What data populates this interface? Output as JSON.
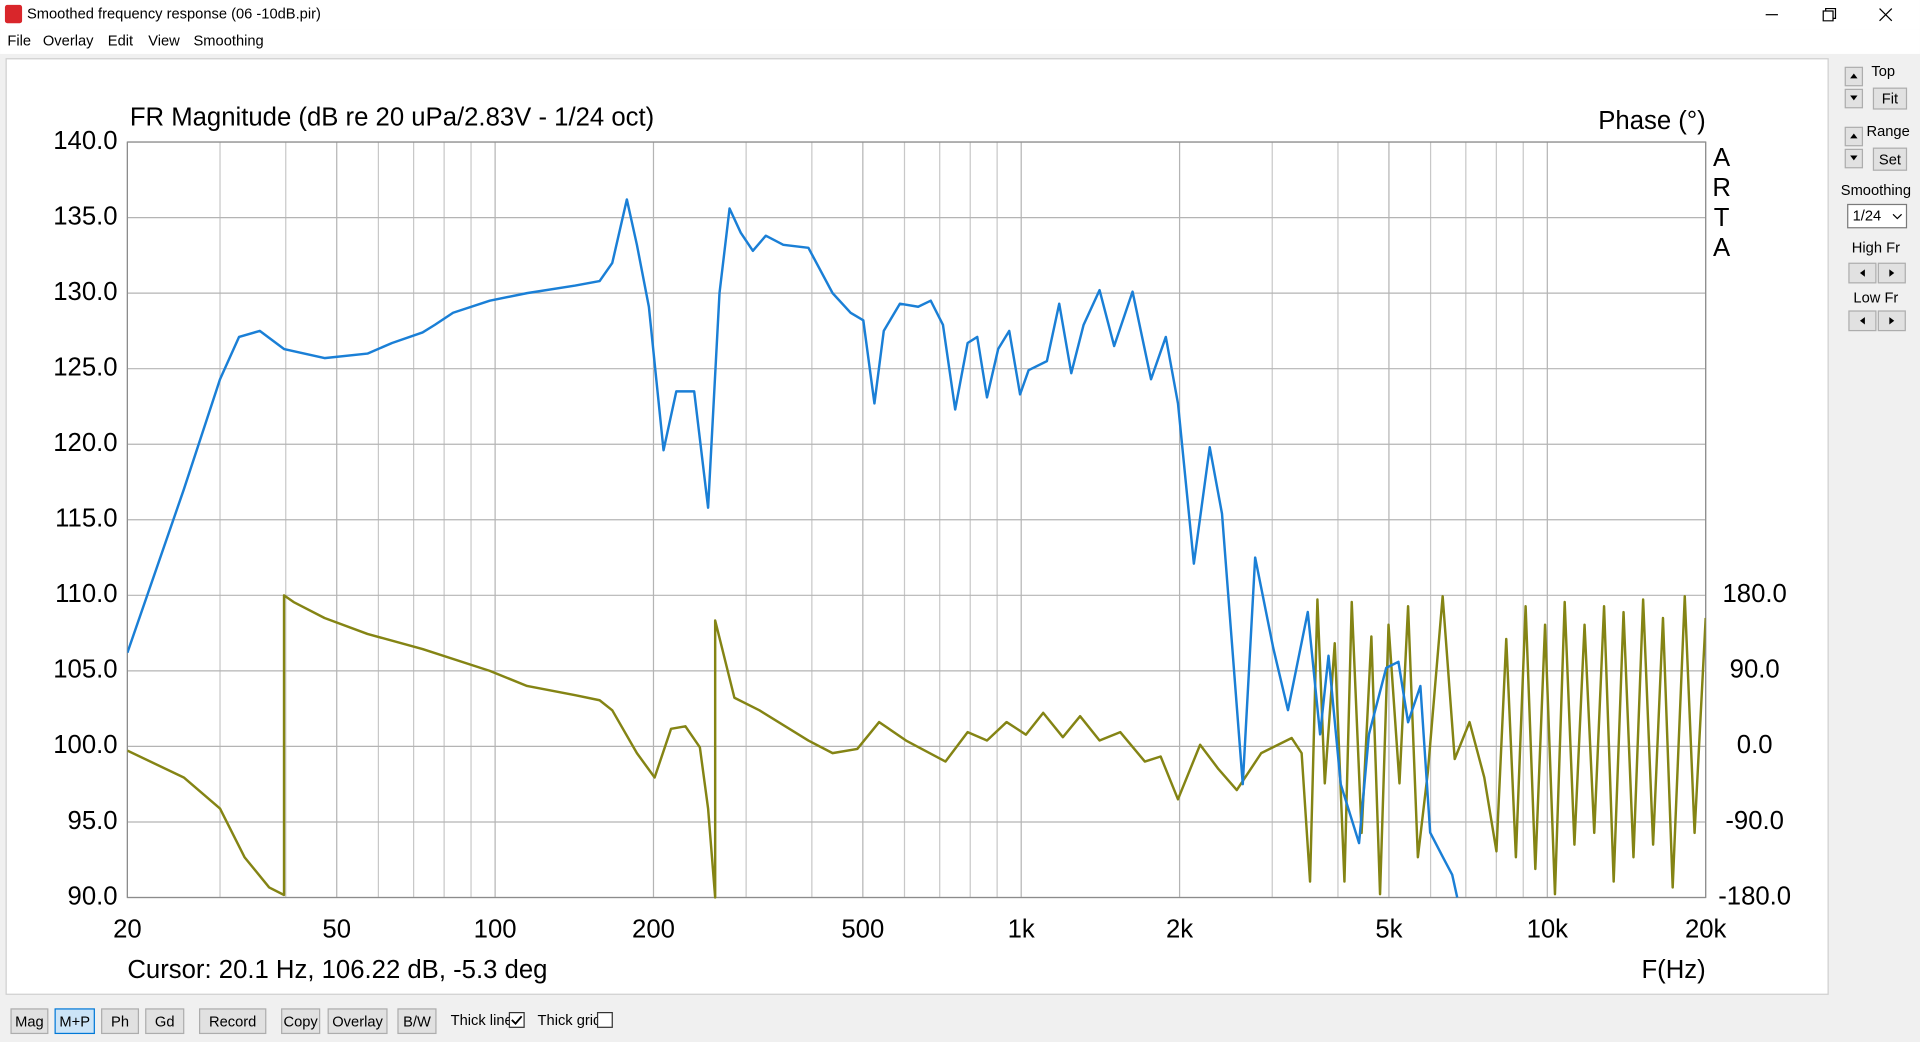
{
  "window": {
    "title": "Smoothed frequency response (06 -10dB.pir)"
  },
  "menu": [
    "File",
    "Overlay",
    "Edit",
    "View",
    "Smoothing"
  ],
  "side_panel": {
    "top": "Top",
    "fit": "Fit",
    "range": "Range",
    "set": "Set",
    "smoothing": "Smoothing",
    "smoothing_value": "1/24",
    "high_fr": "High Fr",
    "low_fr": "Low Fr"
  },
  "toolbar": {
    "buttons": [
      "Mag",
      "M+P",
      "Ph",
      "Gd",
      "Record",
      "Copy",
      "Overlay",
      "B/W"
    ],
    "active_button": 1,
    "checkboxes": [
      {
        "label": "Thick line",
        "checked": true
      },
      {
        "label": "Thick grid",
        "checked": false
      }
    ]
  },
  "chart_data": {
    "type": "line",
    "title": "FR Magnitude (dB re 20 uPa/2.83V - 1/24 oct)",
    "y2_title": "Phase (°)",
    "watermark": [
      "A",
      "R",
      "T",
      "A"
    ],
    "cursor": "Cursor: 20.1 Hz, 106.22 dB, -5.3 deg",
    "x_label": "F(Hz)",
    "xscale": "log",
    "grid": true,
    "xlim": [
      20,
      20000
    ],
    "xticks": [
      20,
      50,
      100,
      200,
      500,
      {
        "value": 1000,
        "label": "1k"
      },
      {
        "value": 2000,
        "label": "2k"
      },
      {
        "value": 5000,
        "label": "5k"
      },
      {
        "value": 10000,
        "label": "10k"
      },
      {
        "value": 20000,
        "label": "20k"
      }
    ],
    "xminor": [
      30,
      40,
      60,
      70,
      80,
      90,
      300,
      400,
      600,
      700,
      800,
      900,
      3000,
      4000,
      6000,
      7000,
      8000,
      9000
    ],
    "ylim": [
      90,
      140
    ],
    "yticks": [
      {
        "value": 90,
        "label": "90.0"
      },
      {
        "value": 95,
        "label": "95.0"
      },
      {
        "value": 100,
        "label": "100.0"
      },
      {
        "value": 105,
        "label": "105.0"
      },
      {
        "value": 110,
        "label": "110.0"
      },
      {
        "value": 115,
        "label": "115.0"
      },
      {
        "value": 120,
        "label": "120.0"
      },
      {
        "value": 125,
        "label": "125.0"
      },
      {
        "value": 130,
        "label": "130.0"
      },
      {
        "value": 135,
        "label": "135.0"
      },
      {
        "value": 140,
        "label": "140.0"
      }
    ],
    "y2lim": [
      -180,
      720
    ],
    "y2ticks": [
      {
        "value": -180,
        "label": "-180.0"
      },
      {
        "value": -90,
        "label": "-90.0"
      },
      {
        "value": 0,
        "label": "0.0"
      },
      {
        "value": 90,
        "label": "90.0"
      },
      {
        "value": 180,
        "label": "180.0"
      }
    ],
    "series": [
      {
        "name": "Magnitude",
        "color": "#1a7fd6",
        "axis": "y",
        "x": [
          20,
          25.6,
          30,
          32.6,
          35.7,
          39.7,
          47.4,
          57.2,
          63.7,
          72.8,
          76.8,
          83.2,
          97.7,
          115,
          142,
          158,
          167,
          178,
          186,
          196,
          209,
          221,
          239,
          254,
          267,
          279,
          293,
          309,
          327,
          353,
          394,
          438,
          474,
          501,
          526,
          548,
          588,
          637,
          673,
          710,
          749,
          791,
          825,
          861,
          904,
          949,
          995,
          1033,
          1119,
          1181,
          1245,
          1314,
          1409,
          1502,
          1628,
          1765,
          1883,
          1986,
          2129,
          2282,
          2408,
          2637,
          2784,
          3014,
          3214,
          3505,
          3699,
          3838,
          4049,
          4387,
          4581,
          4941,
          5212,
          5437,
          5738,
          5989,
          6325,
          6596,
          6742
        ],
        "values": [
          106.2,
          117,
          124.3,
          127.1,
          127.5,
          126.3,
          125.7,
          126,
          126.7,
          127.4,
          127.9,
          128.7,
          129.5,
          130,
          130.5,
          130.8,
          132,
          136.2,
          133.2,
          129.1,
          119.6,
          123.5,
          123.5,
          115.8,
          130,
          135.6,
          134,
          132.8,
          133.8,
          133.2,
          133,
          130,
          128.7,
          128.2,
          122.7,
          127.5,
          129.3,
          129.1,
          129.5,
          127.9,
          122.3,
          126.7,
          127.1,
          123.1,
          126.3,
          127.5,
          123.3,
          124.9,
          125.5,
          129.3,
          124.7,
          127.9,
          130.2,
          126.5,
          130.1,
          124.3,
          127.1,
          122.7,
          112.1,
          119.8,
          115.4,
          97.5,
          112.5,
          106.5,
          102.4,
          108.9,
          100.8,
          106,
          97.5,
          93.6,
          100.8,
          105.2,
          105.6,
          101.6,
          104,
          94.3,
          92.7,
          91.5,
          90
        ]
      },
      {
        "name": "Phase",
        "color": "#848414",
        "axis": "y2",
        "x": [
          20,
          25.6,
          30,
          33.4,
          37.2,
          39.7,
          39.7,
          41.4,
          47.4,
          57.2,
          72.8,
          97.7,
          115,
          142,
          158,
          167,
          186,
          201,
          216,
          230,
          245,
          254,
          262,
          262,
          285,
          318,
          394,
          438,
          488,
          537,
          604,
          718,
          791,
          861,
          938,
          1021,
          1101,
          1200,
          1294,
          1409,
          1543,
          1718,
          1841,
          1986,
          2188,
          2371,
          2569,
          2859,
          3267,
          3412,
          3540,
          3656,
          3776,
          3944,
          4115,
          4249,
          4436,
          4630,
          4809,
          4991,
          5236,
          5437,
          5675,
          5929,
          6325,
          6668,
          7115,
          7589,
          8004,
          8355,
          8715,
          9094,
          9489,
          9902,
          10340,
          10790,
          11260,
          11770,
          12280,
          12820,
          13370,
          13960,
          14580,
          15210,
          15890,
          16590,
          17310,
          18250,
          19050,
          20000
        ],
        "values": [
          -5,
          -37,
          -74,
          -132,
          -168,
          -177,
          180,
          172,
          153,
          134,
          116,
          90,
          72,
          61,
          55,
          43,
          -8,
          -37,
          21,
          24,
          -1,
          -74,
          -180,
          150,
          58,
          43,
          7,
          -8,
          -3,
          29,
          7,
          -18,
          17,
          7,
          29,
          14,
          40,
          11,
          36,
          7,
          17,
          -18,
          -12,
          -63,
          2,
          -27,
          -52,
          -8,
          10,
          -8,
          -161,
          175,
          -44,
          123,
          -161,
          172,
          -103,
          131,
          -176,
          145,
          -44,
          167,
          -132,
          -30,
          179,
          -15,
          29,
          -37,
          -125,
          128,
          -132,
          167,
          -146,
          145,
          -176,
          172,
          -117,
          145,
          -103,
          167,
          -161,
          160,
          -132,
          175,
          -117,
          153,
          -168,
          179,
          -103,
          153
        ]
      }
    ]
  }
}
